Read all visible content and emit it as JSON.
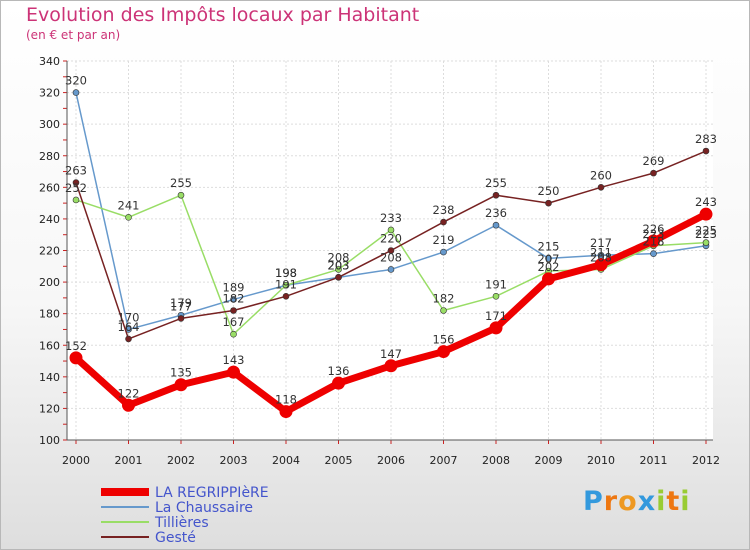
{
  "header": {
    "title": "Evolution des Impôts locaux par Habitant",
    "subtitle": "(en € et par an)"
  },
  "logo": {
    "letters": [
      "P",
      "r",
      "o",
      "x",
      "i",
      "t",
      "i"
    ],
    "colors": [
      "#3399dd",
      "#ee7711",
      "#ee9922",
      "#3399dd",
      "#99cc33",
      "#ee7711",
      "#99cc33"
    ]
  },
  "chart_data": {
    "type": "line",
    "title": "Evolution des Impôts locaux par Habitant",
    "subtitle": "(en € et par an)",
    "xlabel": "",
    "ylabel": "",
    "x": [
      2000,
      2001,
      2002,
      2003,
      2004,
      2005,
      2006,
      2007,
      2008,
      2009,
      2010,
      2011,
      2012
    ],
    "ylim": [
      100,
      340
    ],
    "yticks": [
      100,
      120,
      140,
      160,
      180,
      200,
      220,
      240,
      260,
      280,
      300,
      320,
      340
    ],
    "grid": true,
    "legend_position": "bottom-left",
    "series": [
      {
        "name": "LA REGRIPPIèRE",
        "color": "#ee0000",
        "highlight": true,
        "values": [
          152,
          122,
          135,
          143,
          118,
          136,
          147,
          156,
          171,
          202,
          211,
          226,
          243
        ]
      },
      {
        "name": "La Chaussaire",
        "color": "#6699cc",
        "highlight": false,
        "values": [
          320,
          170,
          179,
          189,
          198,
          203,
          208,
          219,
          236,
          215,
          217,
          218,
          223
        ]
      },
      {
        "name": "Tillières",
        "color": "#99dd66",
        "highlight": false,
        "values": [
          252,
          241,
          255,
          167,
          198,
          208,
          233,
          182,
          191,
          207,
          208,
          223,
          225
        ]
      },
      {
        "name": "Gesté",
        "color": "#772222",
        "highlight": false,
        "values": [
          263,
          164,
          177,
          182,
          191,
          203,
          220,
          238,
          255,
          250,
          260,
          269,
          283
        ]
      }
    ]
  }
}
